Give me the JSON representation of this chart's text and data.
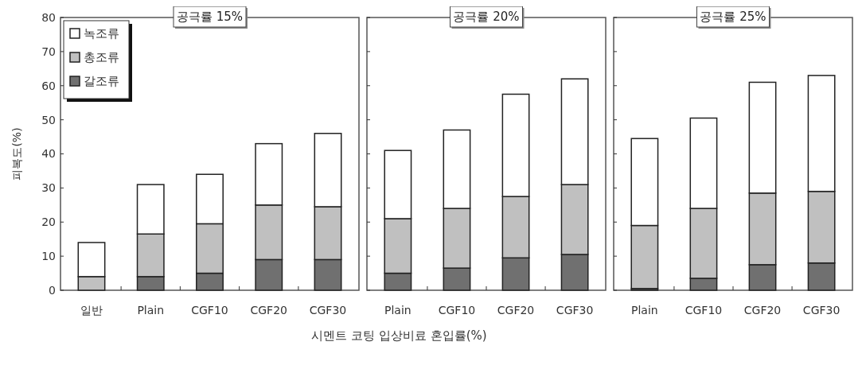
{
  "chart_data": [
    {
      "type": "bar",
      "title": "공극률 15%",
      "ylabel": "피복도(%)",
      "categories": [
        "일반",
        "Plain",
        "CGF10",
        "CGF20",
        "CGF30"
      ],
      "stacked": true,
      "ylim": [
        0,
        80
      ],
      "yticks": [
        0,
        10,
        20,
        30,
        40,
        50,
        60,
        70,
        80
      ],
      "grid": false,
      "legend": "top left",
      "series": [
        {
          "name": "갈조류",
          "color": "#707070",
          "values": [
            0,
            4,
            5,
            9,
            9
          ]
        },
        {
          "name": "총조류",
          "color": "#c0c0c0",
          "values": [
            4,
            12.5,
            14.5,
            16,
            15.5
          ]
        },
        {
          "name": "녹조류",
          "color": "#ffffff",
          "values": [
            10,
            14.5,
            14.5,
            18,
            21.5
          ]
        }
      ]
    },
    {
      "type": "bar",
      "title": "공극률 20%",
      "xlabel": "시멘트 코팅 입상비료 혼입률(%)",
      "categories": [
        "Plain",
        "CGF10",
        "CGF20",
        "CGF30"
      ],
      "stacked": true,
      "ylim": [
        0,
        80
      ],
      "yticks": [
        0,
        10,
        20,
        30,
        40,
        50,
        60,
        70,
        80
      ],
      "tick_labels": "x",
      "grid": false,
      "series": [
        {
          "color": "#707070",
          "values": [
            5,
            6.5,
            9.5,
            10.5
          ]
        },
        {
          "color": "#c0c0c0",
          "values": [
            16,
            17.5,
            18,
            20.5
          ]
        },
        {
          "color": "#ffffff",
          "values": [
            20,
            23,
            30,
            31
          ]
        }
      ]
    },
    {
      "type": "bar",
      "title": "공극률 25%",
      "categories": [
        "Plain",
        "CGF10",
        "CGF20",
        "CGF30"
      ],
      "stacked": true,
      "ylim": [
        0,
        80
      ],
      "yticks": [
        0,
        10,
        20,
        30,
        40,
        50,
        60,
        70,
        80
      ],
      "tick_labels": "x",
      "grid": false,
      "series": [
        {
          "color": "#707070",
          "values": [
            0.5,
            3.5,
            7.5,
            8
          ]
        },
        {
          "color": "#c0c0c0",
          "values": [
            18.5,
            20.5,
            21,
            21
          ]
        },
        {
          "color": "#ffffff",
          "values": [
            25.5,
            26.5,
            32.5,
            34
          ]
        }
      ]
    }
  ]
}
